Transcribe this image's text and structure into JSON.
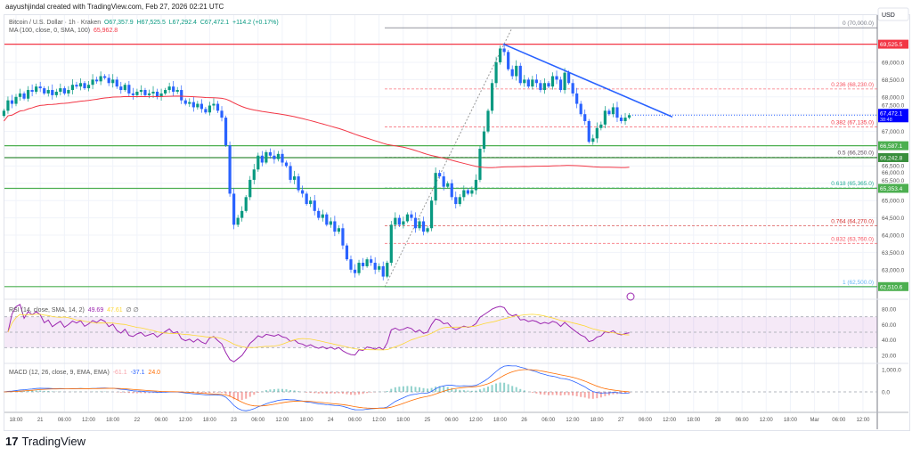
{
  "header": {
    "credit": "aayushjindal created with TradingView.com, Feb 27, 2026 02:21 UTC"
  },
  "legend": {
    "symbol": "Bitcoin / U.S. Dollar · 1h · Kraken",
    "open": "O67,357.9",
    "high": "H67,525.5",
    "low": "L67,292.4",
    "close": "C67,472.1",
    "change": "+114.2 (+0.17%)",
    "ma_label": "MA (100, close, 0, SMA, 100)",
    "ma_value": "65,962.8"
  },
  "rsi": {
    "label": "RSI (14, close, SMA, 14, 2)",
    "value": "49.69",
    "sma": "47.61",
    "extra": "∅ ∅",
    "ticks": [
      "80.00",
      "60.00",
      "40.00",
      "20.00"
    ]
  },
  "macd": {
    "label": "MACD (12, 26, close, 9, EMA, EMA)",
    "hist": "-61.1",
    "macd": "-37.1",
    "signal": "24.0",
    "ticks": [
      "1,000.0",
      "0.0"
    ]
  },
  "price_axis": {
    "currency": "USD",
    "ticks": [
      "69,000.0",
      "68,500.0",
      "68,000.0",
      "67,500.0",
      "67,000.0",
      "66,500.0",
      "66,000.0",
      "65,500.0",
      "65,000.0",
      "64,500.0",
      "64,000.0",
      "63,500.0",
      "63,000.0"
    ],
    "tick_values": [
      69000,
      68500,
      68000,
      67500,
      67000,
      66500,
      66000,
      65500,
      65000,
      64500,
      64000,
      63500,
      63000
    ],
    "current_price": "67,472.1",
    "countdown": "38:48"
  },
  "levels": [
    {
      "price": 69525.5,
      "label": "69,525.5",
      "color": "#f23645"
    },
    {
      "price": 66587.1,
      "label": "66,587.1",
      "color": "#4caf50"
    },
    {
      "price": 66242.8,
      "label": "66,242.8",
      "color": "#388e3c"
    },
    {
      "price": 65353.4,
      "label": "65,353.4",
      "color": "#4caf50"
    },
    {
      "price": 62510.6,
      "label": "62,510.6",
      "color": "#4caf50"
    }
  ],
  "fib": [
    {
      "price": 70000,
      "label": "0 (70,000.0)",
      "color": "#787b86"
    },
    {
      "price": 68230,
      "label": "0.236 (68,230.0)",
      "color": "#f7525f"
    },
    {
      "price": 67135,
      "label": "0.382 (67,135.0)",
      "color": "#f23645"
    },
    {
      "price": 66250,
      "label": "0.5 (66,250.0)",
      "color": "#5d4b5b"
    },
    {
      "price": 65365,
      "label": "0.618 (65,365.0)",
      "color": "#22ab94"
    },
    {
      "price": 64270,
      "label": "0.764 (64,270.0)",
      "color": "#d32f2f"
    },
    {
      "price": 63760,
      "label": "0.832 (63,760.0)",
      "color": "#f7525f"
    },
    {
      "price": 62500,
      "label": "1 (62,500.0)",
      "color": "#64b5f6"
    }
  ],
  "time_axis": [
    "18:00",
    "21",
    "06:00",
    "12:00",
    "18:00",
    "22",
    "06:00",
    "12:00",
    "18:00",
    "23",
    "06:00",
    "12:00",
    "18:00",
    "24",
    "06:00",
    "12:00",
    "18:00",
    "25",
    "06:00",
    "12:00",
    "18:00",
    "26",
    "06:00",
    "12:00",
    "18:00",
    "27",
    "06:00",
    "12:00",
    "18:00",
    "28",
    "06:00",
    "12:00",
    "18:00",
    "Mar",
    "06:00",
    "12:00"
  ],
  "colors": {
    "up": "#089981",
    "down": "#2962ff",
    "ma": "#f23645",
    "trendline": "#2962ff",
    "rsi": "#9c27b0",
    "rsi_sma": "#fdd835",
    "macd": "#2962ff",
    "signal": "#ff6d00"
  },
  "chart_data": {
    "type": "candlestick",
    "interval": "1h",
    "start": "Feb 20 15:00",
    "closes": [
      67600,
      67900,
      67800,
      68000,
      68100,
      67950,
      68200,
      68150,
      68300,
      68250,
      68100,
      68200,
      68050,
      68150,
      68250,
      68100,
      68200,
      68350,
      68300,
      68400,
      68250,
      68350,
      68500,
      68450,
      68600,
      68550,
      68400,
      68500,
      68300,
      68200,
      68350,
      68100,
      68050,
      68150,
      68200,
      68050,
      68100,
      68150,
      68000,
      68100,
      68200,
      68300,
      68150,
      68200,
      67900,
      67800,
      67850,
      67700,
      67800,
      67650,
      67550,
      67750,
      67800,
      67600,
      67400,
      66600,
      65200,
      64300,
      64500,
      64700,
      65100,
      65600,
      65900,
      66300,
      66100,
      66400,
      66300,
      66200,
      66350,
      66100,
      66000,
      65600,
      65700,
      65300,
      65200,
      64900,
      65000,
      64700,
      64500,
      64600,
      64300,
      64400,
      64100,
      64200,
      63700,
      63300,
      63000,
      62900,
      63200,
      63100,
      63300,
      63200,
      63000,
      63100,
      62800,
      63200,
      64300,
      64500,
      64300,
      64400,
      64600,
      64500,
      64200,
      64400,
      64100,
      64200,
      65000,
      65800,
      65700,
      65400,
      65500,
      65100,
      64900,
      65100,
      65300,
      65200,
      65300,
      65600,
      66500,
      67000,
      67600,
      68400,
      69000,
      69400,
      69300,
      68800,
      68600,
      68900,
      68400,
      68500,
      68300,
      68500,
      68400,
      68200,
      68400,
      68300,
      68600,
      68500,
      68200,
      68700,
      68400,
      68100,
      67800,
      67500,
      67300,
      66700,
      66800,
      67100,
      67200,
      67600,
      67500,
      67700,
      67400,
      67300,
      67400,
      67472
    ],
    "yrange": [
      62300,
      70300
    ]
  }
}
